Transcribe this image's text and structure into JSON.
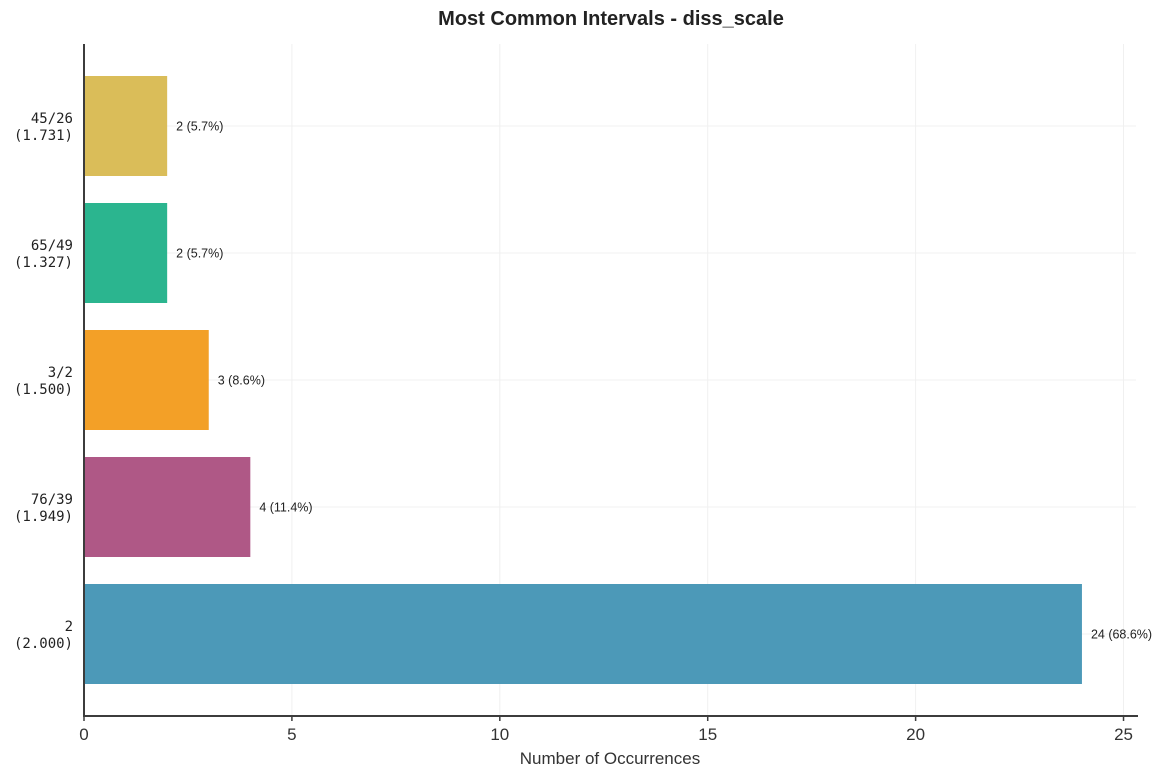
{
  "chart_data": {
    "type": "bar",
    "orientation": "horizontal",
    "title": "Most Common Intervals - diss_scale",
    "xlabel": "Number of Occurrences",
    "ylabel": "",
    "xlim": [
      0,
      25.3
    ],
    "xticks": [
      0,
      5,
      10,
      15,
      20,
      25
    ],
    "grid": true,
    "categories": [
      {
        "ratio": "2",
        "decimal": "(2.000)"
      },
      {
        "ratio": "76/39",
        "decimal": "(1.949)"
      },
      {
        "ratio": "3/2",
        "decimal": "(1.500)"
      },
      {
        "ratio": "65/49",
        "decimal": "(1.327)"
      },
      {
        "ratio": "45/26",
        "decimal": "(1.731)"
      }
    ],
    "values": [
      24,
      4,
      3,
      2,
      2
    ],
    "data_labels": [
      "24 (68.6%)",
      "4 (11.4%)",
      "3 (8.6%)",
      "2 (5.7%)",
      "2 (5.7%)"
    ],
    "colors": [
      "#4C99B8",
      "#AF5886",
      "#F3A027",
      "#2BB58F",
      "#DABD59"
    ]
  }
}
